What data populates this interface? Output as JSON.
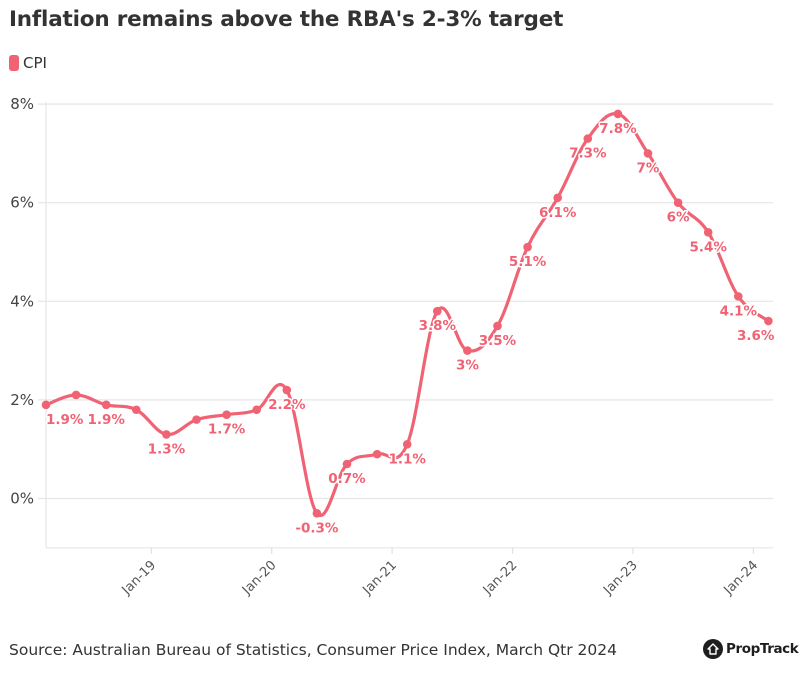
{
  "chart_data": {
    "type": "line",
    "title": "Inflation remains above the RBA's 2-3% target",
    "xlabel": "",
    "ylabel": "",
    "ylim": [
      -1,
      8
    ],
    "y_ticks": [
      0,
      2,
      4,
      6,
      8
    ],
    "y_tick_labels": [
      "0%",
      "2%",
      "4%",
      "6%",
      "8%"
    ],
    "y_gridlines": true,
    "x_tick_labels": [
      "Jan-19",
      "Jan-20",
      "Jan-21",
      "Jan-22",
      "Jan-23",
      "Jan-24"
    ],
    "x_tick_index": [
      3.5,
      7.5,
      11.5,
      15.5,
      19.5,
      23.5
    ],
    "x": [
      "Mar-18",
      "Jun-18",
      "Sep-18",
      "Dec-18",
      "Mar-19",
      "Jun-19",
      "Sep-19",
      "Dec-19",
      "Mar-20",
      "Jun-20",
      "Sep-20",
      "Dec-20",
      "Mar-21",
      "Jun-21",
      "Sep-21",
      "Dec-21",
      "Mar-22",
      "Jun-22",
      "Sep-22",
      "Dec-22",
      "Mar-23",
      "Jun-23",
      "Sep-23",
      "Dec-23",
      "Mar-24"
    ],
    "legend": {
      "position": "top-left",
      "entries": [
        "CPI"
      ]
    },
    "series": [
      {
        "name": "CPI",
        "color": "#f06374",
        "values": [
          1.9,
          2.1,
          1.9,
          1.8,
          1.3,
          1.6,
          1.7,
          1.8,
          2.2,
          -0.3,
          0.7,
          0.9,
          1.1,
          3.8,
          3.0,
          3.5,
          5.1,
          6.1,
          7.3,
          7.8,
          7.0,
          6.0,
          5.4,
          4.1,
          3.6
        ],
        "data_labels": [
          "1.9%",
          null,
          "1.9%",
          null,
          "1.3%",
          null,
          "1.7%",
          null,
          "2.2%",
          "-0.3%",
          "0.7%",
          null,
          "1.1%",
          "3.8%",
          "3%",
          "3.5%",
          "5.1%",
          "6.1%",
          "7.3%",
          "7.8%",
          "7%",
          "6%",
          "5.4%",
          "4.1%",
          "3.6%"
        ]
      }
    ]
  },
  "legend": {
    "label": "CPI"
  },
  "footer": {
    "source": "Source: Australian Bureau of Statistics, Consumer Price Index, March Qtr 2024",
    "brand": "PropTrack"
  }
}
